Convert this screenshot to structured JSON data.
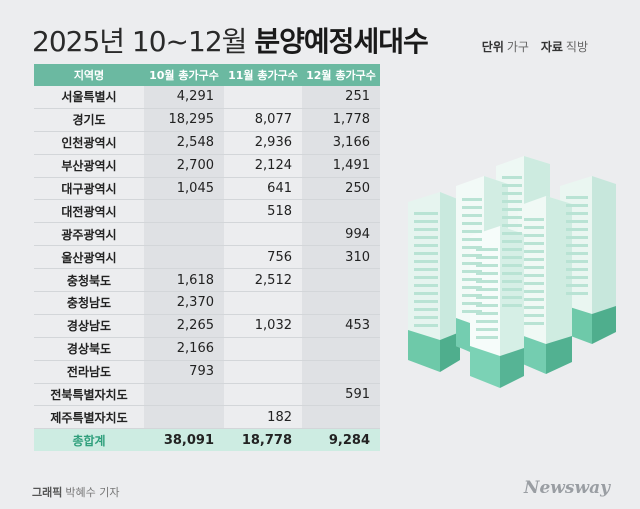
{
  "title": {
    "light": "2025년 10~12월",
    "bold": "분양예정세대수"
  },
  "meta": {
    "unit_label": "단위",
    "unit": "가구",
    "source_label": "자료",
    "source": "직방"
  },
  "chart_data": {
    "type": "table",
    "columns": [
      "지역명",
      "10월 총가구수",
      "11월 총가구수",
      "12월 총가구수"
    ],
    "rows": [
      {
        "region": "서울특별시",
        "oct": "4,291",
        "nov": "",
        "dec": "251"
      },
      {
        "region": "경기도",
        "oct": "18,295",
        "nov": "8,077",
        "dec": "1,778"
      },
      {
        "region": "인천광역시",
        "oct": "2,548",
        "nov": "2,936",
        "dec": "3,166"
      },
      {
        "region": "부산광역시",
        "oct": "2,700",
        "nov": "2,124",
        "dec": "1,491"
      },
      {
        "region": "대구광역시",
        "oct": "1,045",
        "nov": "641",
        "dec": "250"
      },
      {
        "region": "대전광역시",
        "oct": "",
        "nov": "518",
        "dec": ""
      },
      {
        "region": "광주광역시",
        "oct": "",
        "nov": "",
        "dec": "994"
      },
      {
        "region": "울산광역시",
        "oct": "",
        "nov": "756",
        "dec": "310"
      },
      {
        "region": "충청북도",
        "oct": "1,618",
        "nov": "2,512",
        "dec": ""
      },
      {
        "region": "충청남도",
        "oct": "2,370",
        "nov": "",
        "dec": ""
      },
      {
        "region": "경상남도",
        "oct": "2,265",
        "nov": "1,032",
        "dec": "453"
      },
      {
        "region": "경상북도",
        "oct": "2,166",
        "nov": "",
        "dec": ""
      },
      {
        "region": "전라남도",
        "oct": "793",
        "nov": "",
        "dec": ""
      },
      {
        "region": "전북특별자치도",
        "oct": "",
        "nov": "",
        "dec": "591"
      },
      {
        "region": "제주특별자치도",
        "oct": "",
        "nov": "182",
        "dec": ""
      }
    ],
    "total": {
      "region": "총합계",
      "oct": "38,091",
      "nov": "18,778",
      "dec": "9,284"
    }
  },
  "credit": {
    "label": "그래픽",
    "name": "박혜수 기자"
  },
  "logo": "Newsway",
  "colors": {
    "header": "#6bb9a1",
    "total_bg": "#cdece2",
    "accent": "#2f9f7c",
    "building": "#8fd3bd"
  }
}
